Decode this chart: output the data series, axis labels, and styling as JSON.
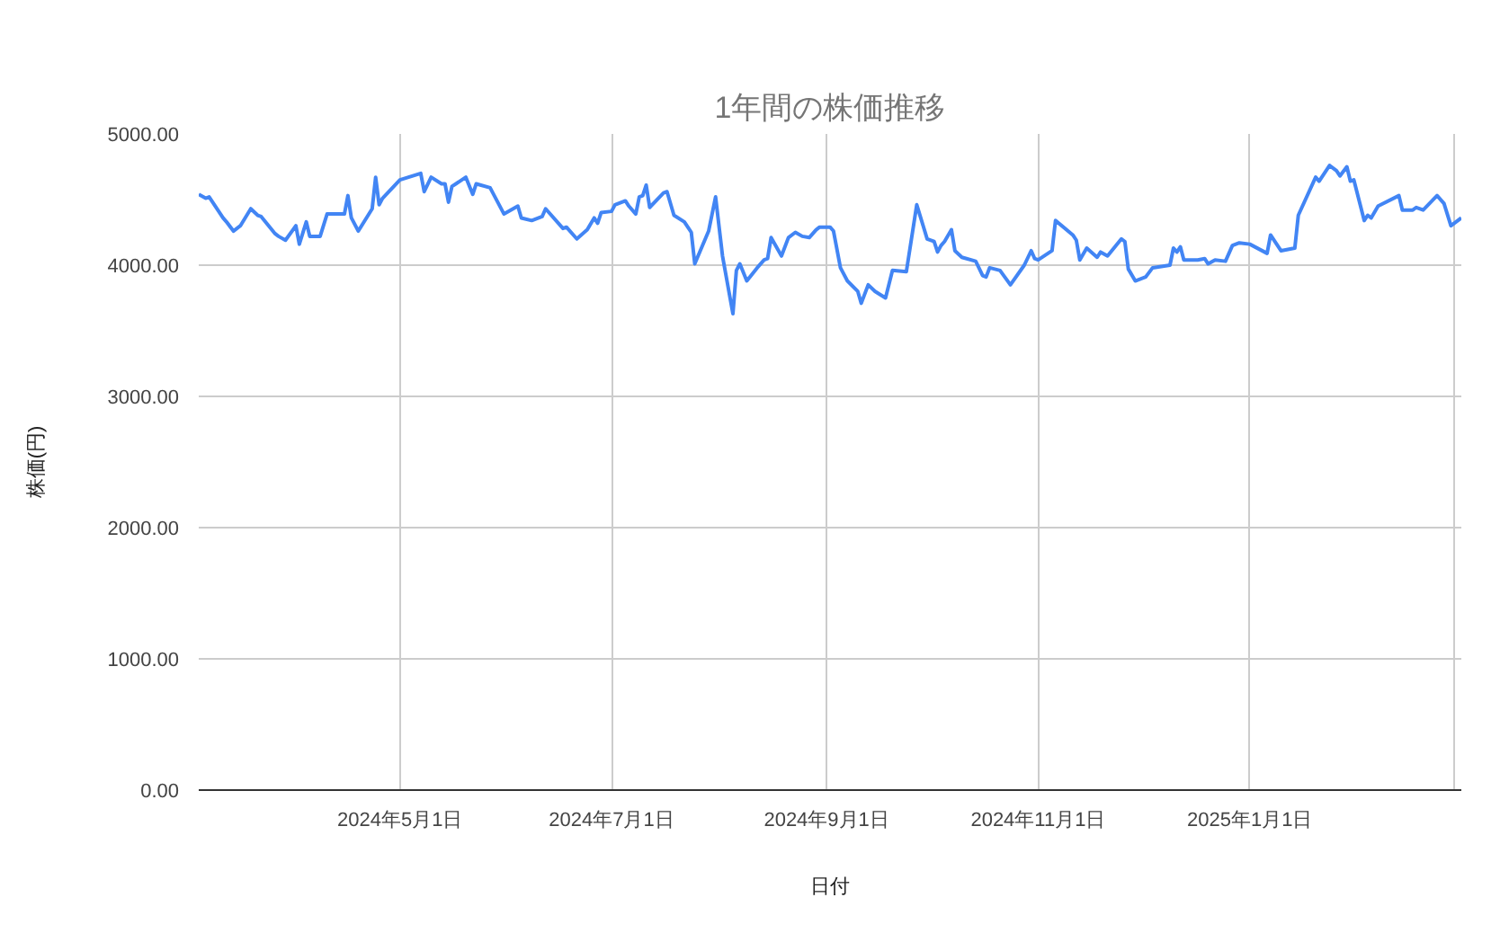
{
  "chart_data": {
    "type": "line",
    "title": "1年間の株価推移",
    "xlabel": "日付",
    "ylabel": "株価(円)",
    "x": [
      "2024-03-04",
      "2024-03-06",
      "2024-03-07",
      "2024-03-11",
      "2024-03-12",
      "2024-03-14",
      "2024-03-16",
      "2024-03-19",
      "2024-03-21",
      "2024-03-22",
      "2024-03-26",
      "2024-03-27",
      "2024-03-29",
      "2024-04-01",
      "2024-04-02",
      "2024-04-04",
      "2024-04-05",
      "2024-04-08",
      "2024-04-10",
      "2024-04-15",
      "2024-04-16",
      "2024-04-17",
      "2024-04-19",
      "2024-04-23",
      "2024-04-24",
      "2024-04-25",
      "2024-04-26",
      "2024-05-01",
      "2024-05-07",
      "2024-05-08",
      "2024-05-10",
      "2024-05-13",
      "2024-05-14",
      "2024-05-15",
      "2024-05-16",
      "2024-05-20",
      "2024-05-22",
      "2024-05-23",
      "2024-05-27",
      "2024-05-31",
      "2024-06-04",
      "2024-06-05",
      "2024-06-08",
      "2024-06-11",
      "2024-06-12",
      "2024-06-17",
      "2024-06-18",
      "2024-06-21",
      "2024-06-24",
      "2024-06-26",
      "2024-06-27",
      "2024-06-28",
      "2024-07-01",
      "2024-07-02",
      "2024-07-05",
      "2024-07-06",
      "2024-07-08",
      "2024-07-09",
      "2024-07-10",
      "2024-07-11",
      "2024-07-12",
      "2024-07-16",
      "2024-07-17",
      "2024-07-19",
      "2024-07-22",
      "2024-07-24",
      "2024-07-25",
      "2024-07-29",
      "2024-07-31",
      "2024-08-02",
      "2024-08-05",
      "2024-08-06",
      "2024-08-07",
      "2024-08-09",
      "2024-08-12",
      "2024-08-14",
      "2024-08-15",
      "2024-08-16",
      "2024-08-19",
      "2024-08-21",
      "2024-08-23",
      "2024-08-25",
      "2024-08-27",
      "2024-08-29",
      "2024-08-30",
      "2024-09-02",
      "2024-09-03",
      "2024-09-05",
      "2024-09-07",
      "2024-09-10",
      "2024-09-11",
      "2024-09-13",
      "2024-09-15",
      "2024-09-18",
      "2024-09-20",
      "2024-09-24",
      "2024-09-25",
      "2024-09-27",
      "2024-09-30",
      "2024-10-02",
      "2024-10-03",
      "2024-10-04",
      "2024-10-05",
      "2024-10-07",
      "2024-10-08",
      "2024-10-10",
      "2024-10-14",
      "2024-10-16",
      "2024-10-17",
      "2024-10-18",
      "2024-10-21",
      "2024-10-24",
      "2024-10-28",
      "2024-10-30",
      "2024-10-31",
      "2024-11-01",
      "2024-11-05",
      "2024-11-06",
      "2024-11-11",
      "2024-11-12",
      "2024-11-13",
      "2024-11-15",
      "2024-11-18",
      "2024-11-19",
      "2024-11-21",
      "2024-11-25",
      "2024-11-26",
      "2024-11-27",
      "2024-11-29",
      "2024-12-02",
      "2024-12-04",
      "2024-12-09",
      "2024-12-10",
      "2024-12-11",
      "2024-12-12",
      "2024-12-13",
      "2024-12-17",
      "2024-12-19",
      "2024-12-20",
      "2024-12-22",
      "2024-12-25",
      "2024-12-27",
      "2024-12-29",
      "2025-01-01",
      "2025-01-06",
      "2025-01-07",
      "2025-01-10",
      "2025-01-14",
      "2025-01-15",
      "2025-01-20",
      "2025-01-21",
      "2025-01-24",
      "2025-01-26",
      "2025-01-27",
      "2025-01-29",
      "2025-01-30",
      "2025-01-31",
      "2025-02-03",
      "2025-02-04",
      "2025-02-05",
      "2025-02-07",
      "2025-02-13",
      "2025-02-14",
      "2025-02-17",
      "2025-02-18",
      "2025-02-20",
      "2025-02-24",
      "2025-02-26",
      "2025-02-28",
      "2025-03-03"
    ],
    "series": [
      {
        "color": "#4285f4",
        "values": [
          4540,
          4510,
          4520,
          4360,
          4330,
          4260,
          4300,
          4430,
          4380,
          4370,
          4240,
          4220,
          4190,
          4300,
          4160,
          4330,
          4220,
          4220,
          4390,
          4390,
          4530,
          4360,
          4260,
          4430,
          4670,
          4460,
          4510,
          4650,
          4700,
          4560,
          4670,
          4620,
          4620,
          4480,
          4600,
          4670,
          4540,
          4620,
          4590,
          4390,
          4450,
          4360,
          4340,
          4370,
          4430,
          4280,
          4290,
          4200,
          4270,
          4360,
          4320,
          4400,
          4410,
          4460,
          4490,
          4450,
          4390,
          4520,
          4530,
          4610,
          4440,
          4550,
          4560,
          4380,
          4330,
          4250,
          4010,
          4260,
          4520,
          4070,
          3630,
          3960,
          4010,
          3880,
          3980,
          4040,
          4050,
          4210,
          4070,
          4210,
          4250,
          4220,
          4210,
          4270,
          4290,
          4290,
          4260,
          3980,
          3880,
          3800,
          3710,
          3850,
          3800,
          3750,
          3960,
          3950,
          4120,
          4460,
          4200,
          4180,
          4100,
          4150,
          4180,
          4270,
          4110,
          4060,
          4030,
          3920,
          3910,
          3980,
          3960,
          3850,
          4000,
          4110,
          4050,
          4040,
          4110,
          4340,
          4230,
          4190,
          4040,
          4130,
          4060,
          4100,
          4070,
          4200,
          4180,
          3970,
          3880,
          3910,
          3980,
          4000,
          4130,
          4100,
          4140,
          4040,
          4040,
          4050,
          4010,
          4040,
          4030,
          4150,
          4170,
          4160,
          4090,
          4230,
          4110,
          4130,
          4380,
          4670,
          4640,
          4760,
          4720,
          4680,
          4750,
          4640,
          4650,
          4340,
          4380,
          4360,
          4450,
          4530,
          4420,
          4420,
          4440,
          4420,
          4530,
          4470,
          4300,
          4360
        ]
      }
    ],
    "xlim": [
      "2024-03-04",
      "2025-03-03"
    ],
    "xticks": [
      {
        "value": "2024-05-01",
        "label": "2024年5月1日"
      },
      {
        "value": "2024-07-01",
        "label": "2024年7月1日"
      },
      {
        "value": "2024-09-01",
        "label": "2024年9月1日"
      },
      {
        "value": "2024-11-01",
        "label": "2024年11月1日"
      },
      {
        "value": "2025-01-01",
        "label": "2025年1月1日"
      },
      {
        "value": "2025-03-01",
        "label": null
      }
    ],
    "ylim": [
      0,
      5000
    ],
    "yticks": [
      {
        "value": 0,
        "label": "0.00"
      },
      {
        "value": 1000,
        "label": "1000.00"
      },
      {
        "value": 2000,
        "label": "2000.00"
      },
      {
        "value": 3000,
        "label": "3000.00"
      },
      {
        "value": 4000,
        "label": "4000.00"
      },
      {
        "value": 5000,
        "label": "5000.00"
      }
    ],
    "grid": true,
    "marker": "none",
    "line_style": "solid"
  }
}
